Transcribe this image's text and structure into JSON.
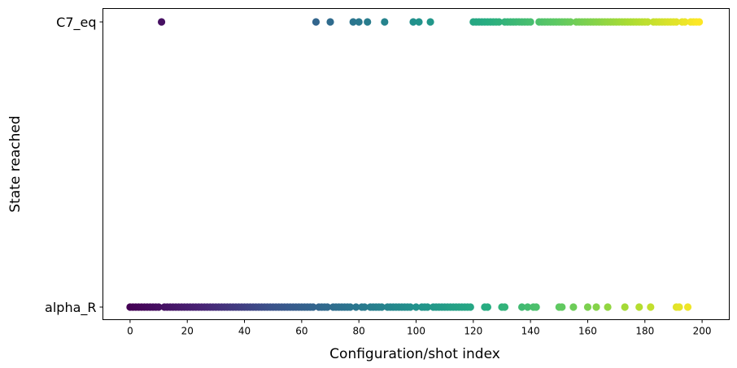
{
  "chart_data": {
    "type": "scatter",
    "title": "",
    "xlabel": "Configuration/shot index",
    "ylabel": "State reached",
    "xlim": [
      -9.5,
      209.5
    ],
    "xticks": [
      0,
      20,
      40,
      60,
      80,
      100,
      120,
      140,
      160,
      180,
      200
    ],
    "categories": [
      "alpha_R",
      "C7_eq"
    ],
    "colormap": "viridis",
    "color_by": "x",
    "grid": false,
    "c7_eq_indices": [
      11,
      65,
      70,
      78,
      80,
      83,
      89,
      99,
      101,
      105,
      120,
      121,
      122,
      123,
      124,
      125,
      126,
      127,
      128,
      129,
      131,
      132,
      133,
      134,
      135,
      136,
      137,
      138,
      139,
      140,
      143,
      144,
      145,
      146,
      147,
      148,
      149,
      150,
      151,
      152,
      153,
      154,
      156,
      157,
      158,
      159,
      160,
      161,
      162,
      163,
      164,
      165,
      166,
      167,
      168,
      169,
      170,
      171,
      172,
      173,
      174,
      175,
      176,
      177,
      178,
      179,
      180,
      181,
      183,
      184,
      185,
      186,
      187,
      188,
      189,
      190,
      191,
      193,
      194,
      196,
      197,
      198,
      199
    ],
    "alpha_r_indices": [
      0,
      1,
      2,
      3,
      4,
      5,
      6,
      7,
      8,
      9,
      10,
      12,
      13,
      14,
      15,
      16,
      17,
      18,
      19,
      20,
      21,
      22,
      23,
      24,
      25,
      26,
      27,
      28,
      29,
      30,
      31,
      32,
      33,
      34,
      35,
      36,
      37,
      38,
      39,
      40,
      41,
      42,
      43,
      44,
      45,
      46,
      47,
      48,
      49,
      50,
      51,
      52,
      53,
      54,
      55,
      56,
      57,
      58,
      59,
      60,
      61,
      62,
      63,
      64,
      66,
      67,
      68,
      69,
      71,
      72,
      73,
      74,
      75,
      76,
      77,
      79,
      81,
      82,
      84,
      85,
      86,
      87,
      88,
      90,
      91,
      92,
      93,
      94,
      95,
      96,
      97,
      98,
      100,
      102,
      103,
      104,
      106,
      107,
      108,
      109,
      110,
      111,
      112,
      113,
      114,
      115,
      116,
      117,
      118,
      119,
      124,
      125,
      130,
      131,
      137,
      139,
      141,
      142,
      150,
      151,
      155,
      160,
      163,
      167,
      173,
      178,
      182,
      191,
      192,
      195
    ]
  }
}
